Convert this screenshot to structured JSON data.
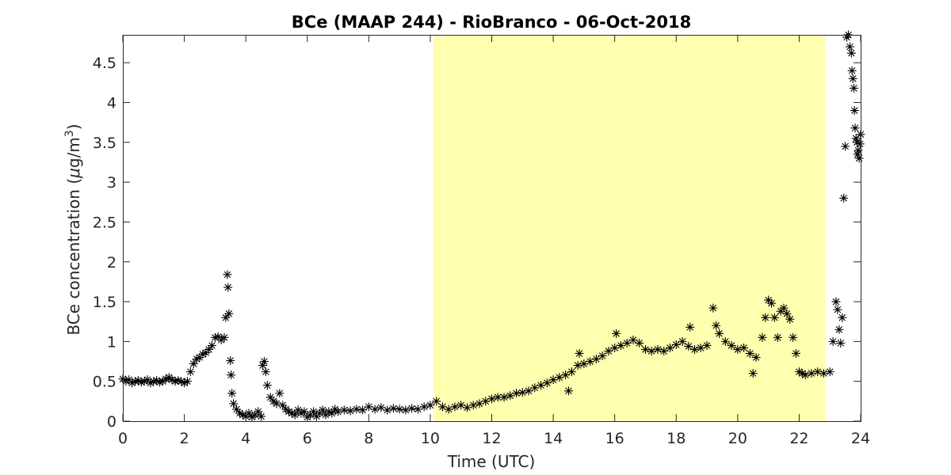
{
  "chart_data": {
    "type": "scatter",
    "title": "BCe (MAAP 244) - RioBranco - 06-Oct-2018",
    "xlabel": "Time (UTC)",
    "ylabel_prefix": "BCe concentration (",
    "ylabel_mu": "μ",
    "ylabel_unit": "g/m",
    "ylabel_sup": "3",
    "ylabel_suffix": ")",
    "xlim": [
      0,
      24
    ],
    "ylim": [
      0,
      4.85
    ],
    "xticks": [
      0,
      2,
      4,
      6,
      8,
      10,
      12,
      14,
      16,
      18,
      20,
      22,
      24
    ],
    "yticks": [
      0,
      0.5,
      1,
      1.5,
      2,
      2.5,
      3,
      3.5,
      4,
      4.5
    ],
    "ytick_labels": [
      "0",
      "0.5",
      "1",
      "1.5",
      "2",
      "2.5",
      "3",
      "3.5",
      "4",
      "4.5"
    ],
    "grid": false,
    "marker": "asterisk",
    "marker_color": "#000000",
    "highlight": {
      "x_start": 10.1,
      "x_end": 22.85,
      "color": "#ffffb0"
    },
    "series": [
      {
        "points": [
          [
            0.0,
            0.53
          ],
          [
            0.1,
            0.5
          ],
          [
            0.2,
            0.52
          ],
          [
            0.3,
            0.48
          ],
          [
            0.4,
            0.5
          ],
          [
            0.5,
            0.51
          ],
          [
            0.6,
            0.49
          ],
          [
            0.7,
            0.5
          ],
          [
            0.8,
            0.52
          ],
          [
            0.9,
            0.48
          ],
          [
            1.0,
            0.5
          ],
          [
            1.1,
            0.51
          ],
          [
            1.2,
            0.49
          ],
          [
            1.3,
            0.5
          ],
          [
            1.4,
            0.53
          ],
          [
            1.5,
            0.55
          ],
          [
            1.6,
            0.52
          ],
          [
            1.7,
            0.5
          ],
          [
            1.8,
            0.51
          ],
          [
            1.9,
            0.5
          ],
          [
            2.0,
            0.48
          ],
          [
            2.1,
            0.5
          ],
          [
            2.2,
            0.62
          ],
          [
            2.3,
            0.72
          ],
          [
            2.4,
            0.78
          ],
          [
            2.5,
            0.8
          ],
          [
            2.6,
            0.84
          ],
          [
            2.7,
            0.86
          ],
          [
            2.8,
            0.9
          ],
          [
            2.9,
            0.95
          ],
          [
            3.0,
            1.05
          ],
          [
            3.1,
            1.06
          ],
          [
            3.2,
            1.02
          ],
          [
            3.3,
            1.05
          ],
          [
            3.35,
            1.3
          ],
          [
            3.4,
            1.84
          ],
          [
            3.42,
            1.68
          ],
          [
            3.45,
            1.35
          ],
          [
            3.5,
            0.76
          ],
          [
            3.52,
            0.58
          ],
          [
            3.55,
            0.35
          ],
          [
            3.6,
            0.22
          ],
          [
            3.7,
            0.15
          ],
          [
            3.8,
            0.1
          ],
          [
            3.9,
            0.08
          ],
          [
            4.0,
            0.06
          ],
          [
            4.1,
            0.1
          ],
          [
            4.2,
            0.05
          ],
          [
            4.3,
            0.08
          ],
          [
            4.4,
            0.12
          ],
          [
            4.5,
            0.06
          ],
          [
            4.55,
            0.7
          ],
          [
            4.6,
            0.75
          ],
          [
            4.65,
            0.62
          ],
          [
            4.7,
            0.45
          ],
          [
            4.8,
            0.3
          ],
          [
            4.9,
            0.25
          ],
          [
            5.0,
            0.22
          ],
          [
            5.1,
            0.35
          ],
          [
            5.2,
            0.2
          ],
          [
            5.3,
            0.15
          ],
          [
            5.4,
            0.12
          ],
          [
            5.5,
            0.1
          ],
          [
            5.6,
            0.08
          ],
          [
            5.7,
            0.14
          ],
          [
            5.8,
            0.1
          ],
          [
            5.9,
            0.12
          ],
          [
            6.0,
            0.05
          ],
          [
            6.1,
            0.08
          ],
          [
            6.2,
            0.12
          ],
          [
            6.3,
            0.06
          ],
          [
            6.4,
            0.1
          ],
          [
            6.5,
            0.14
          ],
          [
            6.6,
            0.08
          ],
          [
            6.7,
            0.12
          ],
          [
            6.8,
            0.1
          ],
          [
            6.9,
            0.15
          ],
          [
            7.0,
            0.12
          ],
          [
            7.2,
            0.14
          ],
          [
            7.4,
            0.13
          ],
          [
            7.6,
            0.15
          ],
          [
            7.8,
            0.14
          ],
          [
            8.0,
            0.18
          ],
          [
            8.2,
            0.15
          ],
          [
            8.4,
            0.17
          ],
          [
            8.6,
            0.14
          ],
          [
            8.8,
            0.16
          ],
          [
            9.0,
            0.15
          ],
          [
            9.2,
            0.14
          ],
          [
            9.4,
            0.16
          ],
          [
            9.6,
            0.15
          ],
          [
            9.8,
            0.18
          ],
          [
            10.0,
            0.2
          ],
          [
            10.2,
            0.25
          ],
          [
            10.4,
            0.18
          ],
          [
            10.6,
            0.15
          ],
          [
            10.8,
            0.18
          ],
          [
            11.0,
            0.2
          ],
          [
            11.2,
            0.17
          ],
          [
            11.4,
            0.2
          ],
          [
            11.6,
            0.22
          ],
          [
            11.8,
            0.25
          ],
          [
            12.0,
            0.28
          ],
          [
            12.2,
            0.3
          ],
          [
            12.4,
            0.3
          ],
          [
            12.6,
            0.32
          ],
          [
            12.8,
            0.35
          ],
          [
            13.0,
            0.36
          ],
          [
            13.2,
            0.38
          ],
          [
            13.4,
            0.42
          ],
          [
            13.6,
            0.45
          ],
          [
            13.8,
            0.48
          ],
          [
            14.0,
            0.52
          ],
          [
            14.2,
            0.55
          ],
          [
            14.4,
            0.58
          ],
          [
            14.5,
            0.38
          ],
          [
            14.6,
            0.62
          ],
          [
            14.8,
            0.7
          ],
          [
            14.85,
            0.85
          ],
          [
            15.0,
            0.72
          ],
          [
            15.2,
            0.75
          ],
          [
            15.4,
            0.78
          ],
          [
            15.6,
            0.82
          ],
          [
            15.8,
            0.88
          ],
          [
            16.0,
            0.92
          ],
          [
            16.05,
            1.1
          ],
          [
            16.2,
            0.95
          ],
          [
            16.4,
            0.98
          ],
          [
            16.6,
            1.02
          ],
          [
            16.8,
            0.98
          ],
          [
            17.0,
            0.9
          ],
          [
            17.2,
            0.88
          ],
          [
            17.4,
            0.9
          ],
          [
            17.6,
            0.88
          ],
          [
            17.8,
            0.92
          ],
          [
            18.0,
            0.96
          ],
          [
            18.2,
            1.0
          ],
          [
            18.4,
            0.94
          ],
          [
            18.45,
            1.18
          ],
          [
            18.6,
            0.9
          ],
          [
            18.8,
            0.92
          ],
          [
            19.0,
            0.95
          ],
          [
            19.2,
            1.42
          ],
          [
            19.3,
            1.2
          ],
          [
            19.4,
            1.1
          ],
          [
            19.6,
            1.0
          ],
          [
            19.8,
            0.95
          ],
          [
            20.0,
            0.9
          ],
          [
            20.2,
            0.92
          ],
          [
            20.4,
            0.85
          ],
          [
            20.5,
            0.6
          ],
          [
            20.6,
            0.8
          ],
          [
            20.8,
            1.05
          ],
          [
            20.9,
            1.3
          ],
          [
            21.0,
            1.52
          ],
          [
            21.1,
            1.48
          ],
          [
            21.2,
            1.3
          ],
          [
            21.3,
            1.05
          ],
          [
            21.4,
            1.38
          ],
          [
            21.5,
            1.42
          ],
          [
            21.6,
            1.35
          ],
          [
            21.7,
            1.28
          ],
          [
            21.8,
            1.05
          ],
          [
            21.9,
            0.85
          ],
          [
            22.0,
            0.62
          ],
          [
            22.1,
            0.6
          ],
          [
            22.2,
            0.58
          ],
          [
            22.4,
            0.6
          ],
          [
            22.6,
            0.62
          ],
          [
            22.8,
            0.6
          ],
          [
            23.0,
            0.62
          ],
          [
            23.1,
            1.0
          ],
          [
            23.2,
            1.5
          ],
          [
            23.25,
            1.4
          ],
          [
            23.3,
            1.15
          ],
          [
            23.35,
            0.98
          ],
          [
            23.4,
            1.3
          ],
          [
            23.45,
            2.8
          ],
          [
            23.5,
            3.45
          ],
          [
            23.55,
            4.82
          ],
          [
            23.6,
            4.85
          ],
          [
            23.65,
            4.7
          ],
          [
            23.7,
            4.62
          ],
          [
            23.72,
            4.4
          ],
          [
            23.75,
            4.3
          ],
          [
            23.78,
            4.18
          ],
          [
            23.8,
            3.9
          ],
          [
            23.82,
            3.68
          ],
          [
            23.85,
            3.55
          ],
          [
            23.88,
            3.5
          ],
          [
            23.9,
            3.35
          ],
          [
            23.92,
            3.4
          ],
          [
            23.95,
            3.3
          ],
          [
            23.98,
            3.48
          ],
          [
            24.0,
            3.6
          ]
        ]
      }
    ]
  }
}
